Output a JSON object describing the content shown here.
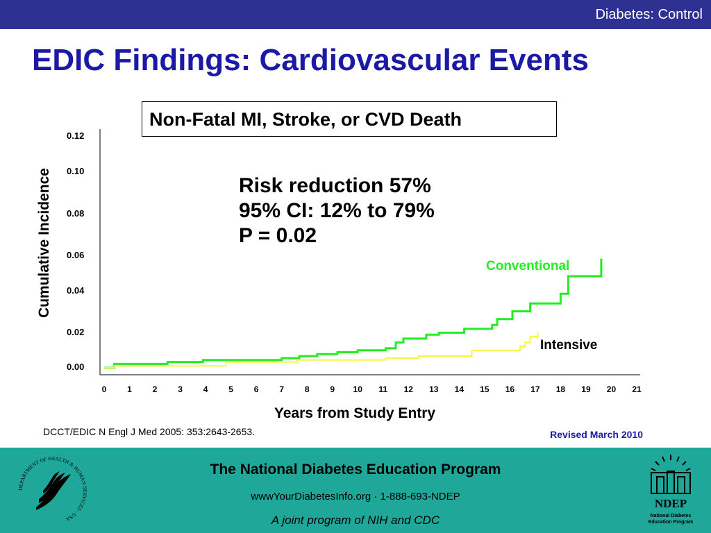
{
  "header": {
    "section": "Diabetes: Control"
  },
  "title": "EDIC Findings: Cardiovascular Events",
  "chart_data": {
    "type": "line",
    "title": "Non-Fatal MI, Stroke, or CVD Death",
    "xlabel": "Years from Study Entry",
    "ylabel": "Cumulative Incidence",
    "xlim": [
      0,
      21
    ],
    "ylim": [
      0,
      0.12
    ],
    "x_ticks": [
      "0",
      "1",
      "2",
      "3",
      "4",
      "5",
      "6",
      "7",
      "8",
      "9",
      "10",
      "11",
      "12",
      "13",
      "14",
      "15",
      "16",
      "17",
      "18",
      "19",
      "20",
      "21"
    ],
    "y_ticks": [
      "0.00",
      "0.02",
      "0.04",
      "0.06",
      "0.08",
      "0.10",
      "0.12"
    ],
    "grid": false,
    "series": [
      {
        "name": "Conventional",
        "color": "#22ee22",
        "points": [
          [
            0,
            0.0
          ],
          [
            0.4,
            0.0
          ],
          [
            0.4,
            0.002
          ],
          [
            2.5,
            0.002
          ],
          [
            2.5,
            0.003
          ],
          [
            3.9,
            0.003
          ],
          [
            3.9,
            0.004
          ],
          [
            7.0,
            0.004
          ],
          [
            7.0,
            0.005
          ],
          [
            7.7,
            0.005
          ],
          [
            7.7,
            0.006
          ],
          [
            8.4,
            0.006
          ],
          [
            8.4,
            0.007
          ],
          [
            9.2,
            0.007
          ],
          [
            9.2,
            0.008
          ],
          [
            10.0,
            0.008
          ],
          [
            10.0,
            0.009
          ],
          [
            11.1,
            0.009
          ],
          [
            11.1,
            0.01
          ],
          [
            11.5,
            0.01
          ],
          [
            11.5,
            0.013
          ],
          [
            11.8,
            0.013
          ],
          [
            11.8,
            0.015
          ],
          [
            12.7,
            0.015
          ],
          [
            12.7,
            0.017
          ],
          [
            13.2,
            0.017
          ],
          [
            13.2,
            0.018
          ],
          [
            14.2,
            0.018
          ],
          [
            14.2,
            0.02
          ],
          [
            15.3,
            0.02
          ],
          [
            15.3,
            0.022
          ],
          [
            15.5,
            0.022
          ],
          [
            15.5,
            0.025
          ],
          [
            16.1,
            0.025
          ],
          [
            16.1,
            0.029
          ],
          [
            16.8,
            0.029
          ],
          [
            16.8,
            0.033
          ],
          [
            18.0,
            0.033
          ],
          [
            18.0,
            0.038
          ],
          [
            18.3,
            0.038
          ],
          [
            18.3,
            0.047
          ],
          [
            19.6,
            0.047
          ],
          [
            19.6,
            0.056
          ]
        ]
      },
      {
        "name": "Intensive",
        "color": "#f5f542",
        "points": [
          [
            0,
            0.0
          ],
          [
            0.4,
            0.0
          ],
          [
            0.4,
            0.001
          ],
          [
            4.8,
            0.001
          ],
          [
            4.8,
            0.003
          ],
          [
            7.6,
            0.003
          ],
          [
            7.6,
            0.004
          ],
          [
            11.1,
            0.004
          ],
          [
            11.1,
            0.005
          ],
          [
            12.4,
            0.005
          ],
          [
            12.4,
            0.006
          ],
          [
            14.5,
            0.006
          ],
          [
            14.5,
            0.009
          ],
          [
            16.4,
            0.009
          ],
          [
            16.4,
            0.011
          ],
          [
            16.6,
            0.011
          ],
          [
            16.6,
            0.013
          ],
          [
            16.8,
            0.013
          ],
          [
            16.8,
            0.016
          ],
          [
            17.1,
            0.016
          ],
          [
            17.1,
            0.018
          ]
        ]
      }
    ]
  },
  "stats": {
    "line1": "Risk reduction 57%",
    "line2": "95% CI: 12% to 79%",
    "line3": "P = 0.02"
  },
  "citation": "DCCT/EDIC N Engl J Med 2005: 353:2643-2653.",
  "revised": "Revised March 2010",
  "footer": {
    "line1": "The National Diabetes Education Program",
    "line2": "wwwYourDiabetesInfo.org · 1-888-693-NDEP",
    "line3": "A joint program of NIH and CDC",
    "seal_text": "DEPARTMENT OF HEALTH & HUMAN SERVICES · USA",
    "ndep_label": "NDEP",
    "ndep_sub1": "National Diabetes",
    "ndep_sub2": "Education Program"
  },
  "colors": {
    "header_bg": "#2e3192",
    "title_text": "#1a1aa6",
    "footer_bg": "#1fa89a",
    "conventional": "#22ee22",
    "intensive": "#f5f542"
  }
}
